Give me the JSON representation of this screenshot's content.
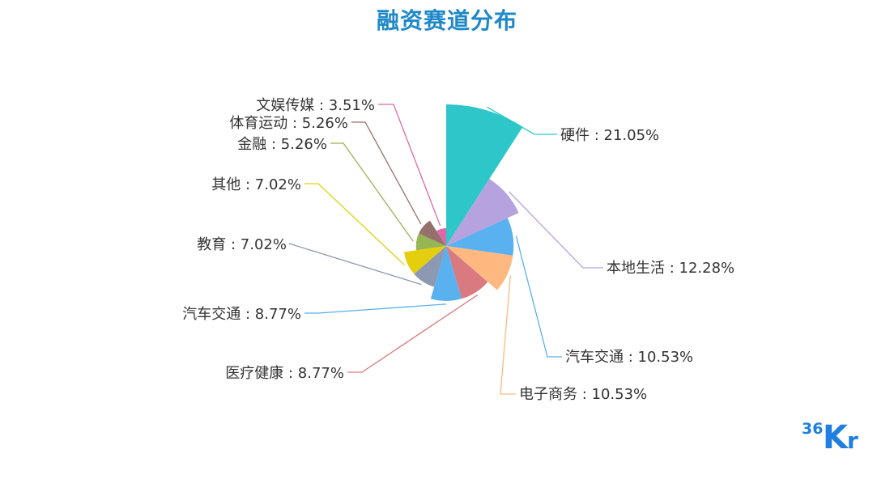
{
  "chart_data": {
    "type": "pie",
    "subtype": "rose",
    "title": "融资赛道分布",
    "slices": [
      {
        "name": "硬件",
        "value": 21.05,
        "label": "硬件 : 21.05%",
        "color": "#2ec7c9"
      },
      {
        "name": "本地生活",
        "value": 12.28,
        "label": "本地生活 : 12.28%",
        "color": "#b6a2de"
      },
      {
        "name": "汽车交通",
        "value": 10.53,
        "label": "汽车交通 : 10.53%",
        "color": "#5ab1ef"
      },
      {
        "name": "电子商务",
        "value": 10.53,
        "label": "电子商务 : 10.53%",
        "color": "#ffb980"
      },
      {
        "name": "医疗健康",
        "value": 8.77,
        "label": "医疗健康 : 8.77%",
        "color": "#d87a80"
      },
      {
        "name": "汽车交通",
        "value": 8.77,
        "label": "汽车交通 : 8.77%",
        "color": "#5ab1ef"
      },
      {
        "name": "教育",
        "value": 7.02,
        "label": "教育 : 7.02%",
        "color": "#8d98b3"
      },
      {
        "name": "其他",
        "value": 7.02,
        "label": "其他 : 7.02%",
        "color": "#e5cf0d"
      },
      {
        "name": "金融",
        "value": 5.26,
        "label": "金融 : 5.26%",
        "color": "#97b552"
      },
      {
        "name": "体育运动",
        "value": 5.26,
        "label": "体育运动 : 5.26%",
        "color": "#95706d"
      },
      {
        "name": "文娱传媒",
        "value": 3.51,
        "label": "文娱传媒 : 3.51%",
        "color": "#dc69aa"
      }
    ]
  },
  "logo": {
    "text": "36Kr",
    "color": "#1e7fe0"
  }
}
